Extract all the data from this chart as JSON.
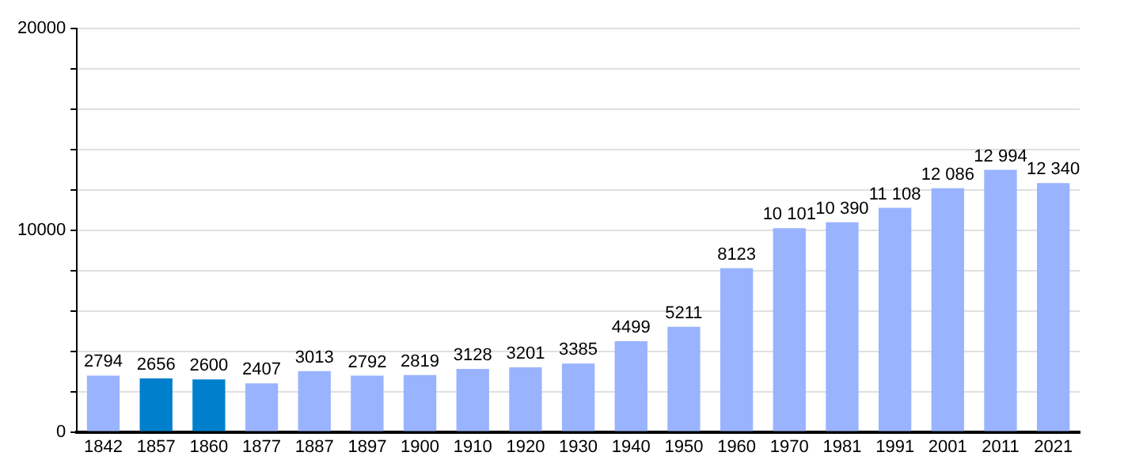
{
  "chart_data": {
    "type": "bar",
    "categories": [
      "1842",
      "1857",
      "1860",
      "1877",
      "1887",
      "1897",
      "1900",
      "1910",
      "1920",
      "1930",
      "1940",
      "1950",
      "1960",
      "1970",
      "1981",
      "1991",
      "2001",
      "2011",
      "2021"
    ],
    "values": [
      2794,
      2656,
      2600,
      2407,
      3013,
      2792,
      2819,
      3128,
      3201,
      3385,
      4499,
      5211,
      8123,
      10101,
      10390,
      11108,
      12086,
      12994,
      12340
    ],
    "colors": [
      "#99b3ff",
      "#0080cc",
      "#0080cc",
      "#99b3ff",
      "#99b3ff",
      "#99b3ff",
      "#99b3ff",
      "#99b3ff",
      "#99b3ff",
      "#99b3ff",
      "#99b3ff",
      "#99b3ff",
      "#99b3ff",
      "#99b3ff",
      "#99b3ff",
      "#99b3ff",
      "#99b3ff",
      "#99b3ff",
      "#99b3ff"
    ],
    "value_labels": [
      "2794",
      "2656",
      "2600",
      "2407",
      "3013",
      "2792",
      "2819",
      "3128",
      "3201",
      "3385",
      "4499",
      "5211",
      "8123",
      "10 101",
      "10 390",
      "11 108",
      "12 086",
      "12 994",
      "12 340"
    ],
    "ylim": [
      0,
      20000
    ],
    "yticks": [
      0,
      {
        "value": 2000,
        "label": null
      },
      {
        "value": 4000,
        "label": null
      },
      {
        "value": 6000,
        "label": null
      },
      {
        "value": 8000,
        "label": null
      },
      10000,
      {
        "value": 12000,
        "label": null
      },
      {
        "value": 14000,
        "label": null
      },
      {
        "value": 16000,
        "label": null
      },
      {
        "value": 18000,
        "label": null
      },
      20000
    ],
    "grid": "y",
    "legend": false
  }
}
